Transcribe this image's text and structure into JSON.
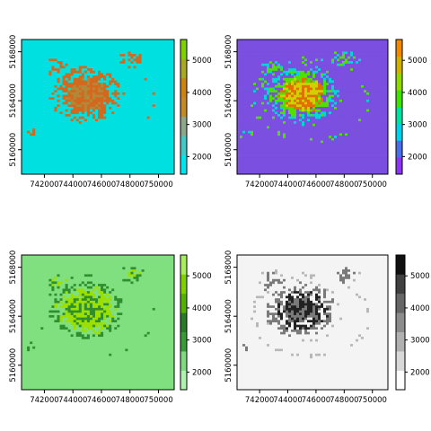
{
  "chart_data": [
    {
      "type": "heatmap",
      "palette": [
        "#00e0e0",
        "#b08a3a",
        "#d2691e",
        "#7fc800"
      ],
      "x_ticks": [
        "742000",
        "744000",
        "746000",
        "748000",
        "750000"
      ],
      "y_ticks": [
        "5160000",
        "5164000",
        "5168000"
      ],
      "legend_ticks": [
        "2000",
        "3000",
        "4000",
        "5000"
      ],
      "legend_colors": [
        "#00e5ee",
        "#47c6c6",
        "#8ea68a",
        "#c38a2c",
        "#c98414",
        "#a7a828",
        "#7fd000"
      ]
    },
    {
      "type": "heatmap",
      "palette": [
        "#7b4fe0",
        "#00d6d6",
        "#50e000",
        "#d0d000",
        "#e07000"
      ],
      "x_ticks": [
        "742000",
        "744000",
        "746000",
        "748000",
        "750000"
      ],
      "y_ticks": [
        "5160000",
        "5164000",
        "5168000"
      ],
      "legend_ticks": [
        "2000",
        "3000",
        "4000",
        "5000"
      ],
      "legend_colors": [
        "#8a35f0",
        "#4a6ee8",
        "#00d0ea",
        "#00e0a0",
        "#40e000",
        "#90d800",
        "#d0b000",
        "#f08800"
      ]
    },
    {
      "type": "heatmap",
      "palette": [
        "#80e080",
        "#2f8f2f",
        "#9be000"
      ],
      "x_ticks": [
        "742000",
        "744000",
        "746000",
        "748000",
        "750000"
      ],
      "y_ticks": [
        "5160000",
        "5164000",
        "5168000"
      ],
      "legend_ticks": [
        "2000",
        "3000",
        "4000",
        "5000"
      ],
      "legend_colors": [
        "#b0f0b0",
        "#80d880",
        "#3a9a3a",
        "#2a7a2a",
        "#56b000",
        "#7ed000",
        "#a8ec60"
      ]
    },
    {
      "type": "heatmap",
      "palette": [
        "#f4f4f4",
        "#7a7a7a",
        "#222222"
      ],
      "x_ticks": [
        "742000",
        "744000",
        "746000",
        "748000",
        "750000"
      ],
      "y_ticks": [
        "5160000",
        "5164000",
        "5168000"
      ],
      "legend_ticks": [
        "2000",
        "3000",
        "4000",
        "5000"
      ],
      "legend_colors": [
        "#ffffff",
        "#d8d8d8",
        "#b0b0b0",
        "#8c8c8c",
        "#666666",
        "#404040",
        "#101010"
      ]
    }
  ]
}
